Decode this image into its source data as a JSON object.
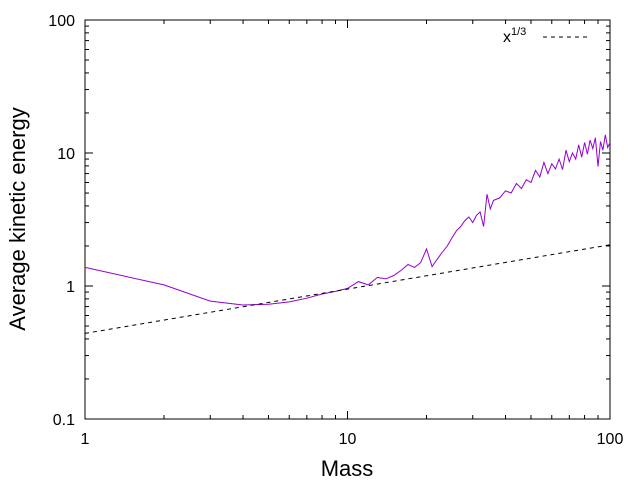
{
  "chart_data": {
    "type": "line",
    "xlabel": "Mass",
    "ylabel": "Average kinetic energy",
    "xscale": "log",
    "yscale": "log",
    "xlim": [
      1,
      100
    ],
    "ylim": [
      0.1,
      100
    ],
    "x_ticks": [
      "1",
      "10",
      "100"
    ],
    "y_ticks": [
      "0.1",
      "1",
      "10",
      "100"
    ],
    "grid": false,
    "legend_position": "top-right",
    "series": [
      {
        "color": "#9400D3",
        "style": "solid",
        "x": [
          1,
          2,
          3,
          4,
          5,
          6,
          7,
          8,
          9,
          10,
          11,
          12,
          13,
          14,
          15,
          16,
          17,
          18,
          19,
          20,
          21,
          22,
          23,
          24,
          25,
          26,
          27,
          28,
          29,
          30,
          31,
          32,
          33,
          34,
          35,
          36,
          38,
          40,
          42,
          44,
          46,
          48,
          50,
          52,
          54,
          56,
          58,
          60,
          62,
          64,
          66,
          68,
          70,
          72,
          74,
          76,
          78,
          80,
          82,
          84,
          86,
          88,
          90,
          92,
          94,
          96,
          98,
          100
        ],
        "y": [
          1.38,
          1.02,
          0.77,
          0.72,
          0.73,
          0.76,
          0.81,
          0.87,
          0.91,
          0.96,
          1.08,
          1.02,
          1.16,
          1.13,
          1.2,
          1.31,
          1.45,
          1.38,
          1.5,
          1.9,
          1.4,
          1.6,
          1.8,
          2.0,
          2.3,
          2.6,
          2.8,
          3.1,
          3.3,
          3.0,
          3.4,
          3.6,
          2.8,
          4.9,
          3.8,
          4.4,
          4.6,
          5.2,
          5.0,
          5.9,
          5.4,
          6.3,
          6.0,
          7.4,
          6.6,
          8.5,
          7.0,
          8.3,
          7.6,
          9.0,
          7.5,
          10.5,
          8.6,
          10.0,
          9.0,
          11.5,
          9.3,
          12.0,
          9.8,
          12.5,
          10.8,
          13.0,
          7.9,
          12.2,
          10.5,
          13.7,
          11.0,
          12.0
        ]
      },
      {
        "name": "x^{1/3}",
        "color": "#000000",
        "style": "dashed",
        "formula": "0.44 * x^(1/3)",
        "x": [
          1,
          100
        ],
        "y": [
          0.44,
          2.04
        ]
      }
    ]
  },
  "legend": {
    "base": "x",
    "exponent": "1/3"
  }
}
